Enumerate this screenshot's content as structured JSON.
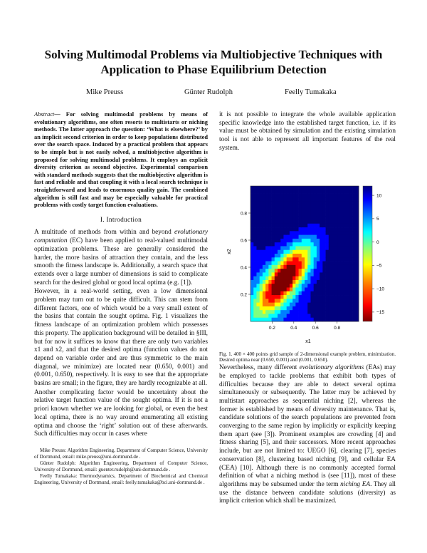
{
  "title_line1": "Solving Multimodal Problems via Multiobjective Techniques with",
  "title_line2": "Application to Phase Equilibrium Detection",
  "authors": [
    "Mike Preuss",
    "Günter Rudolph",
    "Feelly Tumakaka"
  ],
  "abstract": {
    "lead": "Abstract",
    "text": "— For solving multimodal problems by means of evolutionary algorithms, one often resorts to multistarts or niching methods. The latter approach the question: ‘What is elsewhere?’ by an implicit second criterion in order to keep populations distributed over the search space. Induced by a practical problem that appears to be simple but is not easily solved, a multiobjective algorithm is proposed for solving multimodal problems. It employs an explicit diversity criterion as second objective. Experimental comparison with standard methods suggests that the multiobjective algorithm is fast and reliable and that coupling it with a local search technique is straightforward and leads to enormous quality gain. The combined algorithm is still fast and may be especially valuable for practical problems with costly target function evaluations."
  },
  "section_heading": "I. Introduction",
  "intro": {
    "p1_a": "A multitude of methods from within and beyond ",
    "p1_em": "evolutionary computation",
    "p1_b": " (EC) have been applied to real-valued multimodal optimization problems. These are generally considered the harder, the more basins of attraction they contain, and the less smooth the fitness landscape is. Additionally, a search space that extends over a large number of dimensions is said to complicate search for the desired global or good local optima (e.g. [1]).",
    "p2": "However, in a real-world setting, even a low dimensional problem may turn out to be quite difficult. This can stem from different factors, one of which would be a very small extent of the basins that contain the sought optima. Fig. 1 visualizes the fitness landscape of an optimization problem which possesses this property. The application background will be detailed in §III, but for now it suffices to know that there are only two variables x1 and x2, and that the desired optima (function values do not depend on variable order and are thus symmetric to the main diagonal, we minimize) are located near (0.650, 0.001) and (0.001, 0.650), respectively. It is easy to see that the appropriate basins are small; in the figure, they are hardly recognizable at all.",
    "p3": "Another complicating factor would be uncertainty about the relative target function value of the sought optima. If it is not a priori known whether we are looking for global, or even the best local optima, there is no way around enumerating all existing optima and choose the ‘right’ solution out of these afterwards. Such difficulties may occur in cases where"
  },
  "footnotes": [
    "Mike Preuss: Algorithm Engineering, Department of Computer Science, University of Dortmund, email: mike.preuss@uni-dortmund.de .",
    "Günter Rudolph: Algorithm Engineering, Department of Computer Science, University of Dortmund, email: guenter.rudolph@uni-dortmund.de .",
    "Feelly Tumakaka: Thermodynamics, Department of Biochemical and Chemical Engineering, University of Dortmund, email: feelly.tumakaka@bci.uni-dortmund.de ."
  ],
  "right_col": {
    "p_top": "it is not possible to integrate the whole available application specific knowledge into the established target function, i.e. if its value must be obtained by simulation and the existing simulation tool is not able to represent all important features of the real system.",
    "caption": "Fig. 1. 400 × 400 points grid sample of 2-dimensional example problem, minimization. Desired optima near (0.650, 0.001) and (0.001, 0.650).",
    "p_a1": "Nevertheless, many different ",
    "p_a_em": "evolutionary algorithms",
    "p_a2": " (EAs) may be employed to tackle problems that exhibit both types of difficulties because they are able to detect several optima simultaneously or subsequently. The latter may be achieved by multistart approaches as sequential niching [2], whereas the former is established by means of diversity maintenance. That is, candidate solutions of the search populations are prevented from converging to the same region by implicitly or explicitly keeping them apart (see [3]). Prominent examples are crowding [4] and fitness sharing [5], and their successors. More recent approaches include, but are not limited to: UEGO [6], clearing [7], species conservation [8], clustering based niching [9], and cellular EA (CEA) [10]. Although there is no commonly accepted formal definition of what a niching method is (see [11]), most of these algorithms may be subsumed under the term ",
    "p_a_em2": "niching EA",
    "p_a3": ". They all use the distance between candidate solutions (diversity) as implicit criterion which shall be maximized."
  },
  "chart_data": {
    "type": "heatmap",
    "title": "",
    "xlabel": "x1",
    "ylabel": "x2",
    "xticks": [
      "0.2",
      "0.4",
      "0.6",
      "0.8"
    ],
    "yticks": [
      "0.2",
      "0.4",
      "0.6",
      "0.8"
    ],
    "xlim": [
      0.0,
      1.0
    ],
    "ylim": [
      0.0,
      1.0
    ],
    "colorbar_ticks": [
      "10",
      "5",
      "0",
      "−5",
      "−10",
      "−15"
    ],
    "colorbar_range": [
      -17,
      12
    ],
    "colors": [
      "#00007f",
      "#0000ff",
      "#007fff",
      "#00ffff",
      "#7fff7f",
      "#ffff00",
      "#ff7f00",
      "#ff0000",
      "#7f0000"
    ],
    "grid": false
  }
}
